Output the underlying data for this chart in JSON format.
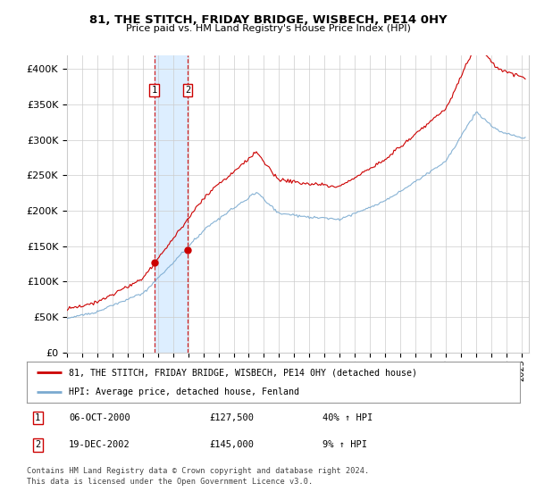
{
  "title": "81, THE STITCH, FRIDAY BRIDGE, WISBECH, PE14 0HY",
  "subtitle": "Price paid vs. HM Land Registry's House Price Index (HPI)",
  "yticks": [
    0,
    50000,
    100000,
    150000,
    200000,
    250000,
    300000,
    350000,
    400000
  ],
  "ytick_labels": [
    "£0",
    "£50K",
    "£100K",
    "£150K",
    "£200K",
    "£250K",
    "£300K",
    "£350K",
    "£400K"
  ],
  "xmin": 1995.0,
  "xmax": 2025.5,
  "ymin": 0,
  "ymax": 420000,
  "sale1_x": 2000.76,
  "sale1_y": 127500,
  "sale2_x": 2002.97,
  "sale2_y": 145000,
  "sale1_date": "06-OCT-2000",
  "sale1_price": "£127,500",
  "sale1_hpi": "40% ↑ HPI",
  "sale2_date": "19-DEC-2002",
  "sale2_price": "£145,000",
  "sale2_hpi": "9% ↑ HPI",
  "legend_line1": "81, THE STITCH, FRIDAY BRIDGE, WISBECH, PE14 0HY (detached house)",
  "legend_line2": "HPI: Average price, detached house, Fenland",
  "footer1": "Contains HM Land Registry data © Crown copyright and database right 2024.",
  "footer2": "This data is licensed under the Open Government Licence v3.0.",
  "red_color": "#cc0000",
  "blue_color": "#7aaad0",
  "shade_color": "#ddeeff",
  "grid_color": "#cccccc",
  "background_color": "#ffffff"
}
